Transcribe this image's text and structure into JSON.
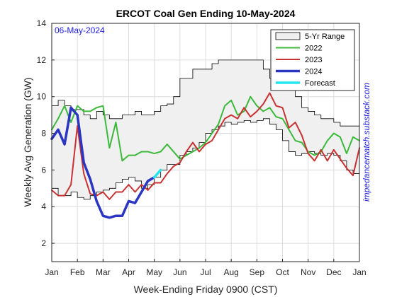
{
  "chart_data": {
    "type": "line",
    "title": "ERCOT Coal Gen Ending 10-May-2024",
    "xlabel": "Week-Ending Friday 0900 (CST)",
    "ylabel": "Weekly Avg Generation (GW)",
    "annotation": "06-May-2024",
    "side_label": "impedancematch.substack.com",
    "x_ticks": [
      "Jan",
      "Feb",
      "Mar",
      "Apr",
      "May",
      "Jun",
      "Jul",
      "Aug",
      "Sep",
      "Oct",
      "Nov",
      "Dec",
      "Jan"
    ],
    "x_range": [
      0,
      12
    ],
    "ylim": [
      1,
      14
    ],
    "y_ticks": [
      2,
      4,
      6,
      8,
      10,
      12,
      14
    ],
    "grid": true,
    "legend_position": "top-right",
    "range_band": {
      "name": "5-Yr Range",
      "color": "#f0f0f0",
      "x": [
        0.0,
        0.25,
        0.5,
        0.75,
        1.0,
        1.25,
        1.5,
        1.75,
        2.0,
        2.25,
        2.5,
        2.75,
        3.0,
        3.25,
        3.5,
        3.75,
        4.0,
        4.25,
        4.5,
        4.75,
        5.0,
        5.25,
        5.5,
        5.75,
        6.0,
        6.25,
        6.5,
        6.75,
        7.0,
        7.25,
        7.5,
        7.75,
        8.0,
        8.25,
        8.5,
        8.75,
        9.0,
        9.25,
        9.5,
        9.75,
        10.0,
        10.25,
        10.5,
        10.75,
        11.0,
        11.25,
        11.5,
        11.75,
        12.0
      ],
      "low": [
        5.0,
        4.6,
        4.6,
        4.8,
        4.5,
        4.4,
        4.6,
        4.8,
        4.9,
        5.0,
        5.3,
        5.5,
        5.6,
        5.4,
        5.0,
        5.2,
        5.6,
        6.0,
        6.3,
        6.3,
        6.8,
        7.0,
        7.2,
        7.5,
        8.0,
        8.2,
        8.4,
        8.6,
        8.5,
        8.6,
        8.7,
        8.6,
        8.7,
        8.8,
        8.5,
        8.2,
        7.6,
        7.0,
        6.8,
        6.9,
        7.0,
        6.9,
        6.8,
        6.9,
        6.8,
        6.5,
        6.0,
        5.8,
        5.8
      ],
      "high": [
        9.5,
        9.8,
        9.5,
        9.3,
        9.3,
        9.0,
        8.8,
        9.2,
        9.0,
        8.8,
        8.8,
        9.0,
        9.0,
        9.2,
        9.0,
        9.0,
        9.2,
        9.5,
        9.6,
        10.0,
        11.0,
        11.0,
        11.5,
        11.5,
        11.5,
        11.8,
        12.0,
        12.0,
        12.0,
        12.0,
        12.0,
        12.0,
        12.0,
        11.5,
        11.0,
        11.0,
        10.6,
        10.6,
        10.0,
        9.4,
        9.2,
        9.0,
        8.8,
        8.8,
        8.6,
        8.4,
        8.4,
        8.4,
        8.4
      ]
    },
    "series": [
      {
        "name": "2022",
        "color": "#3bb93b",
        "x": [
          0.0,
          0.25,
          0.5,
          0.75,
          1.0,
          1.25,
          1.5,
          1.75,
          2.0,
          2.25,
          2.5,
          2.75,
          3.0,
          3.25,
          3.5,
          3.75,
          4.0,
          4.25,
          4.5,
          4.75,
          5.0,
          5.25,
          5.5,
          5.75,
          6.0,
          6.25,
          6.5,
          6.75,
          7.0,
          7.25,
          7.5,
          7.75,
          8.0,
          8.25,
          8.5,
          8.75,
          9.0,
          9.25,
          9.5,
          9.75,
          10.0,
          10.25,
          10.5,
          10.75,
          11.0,
          11.25,
          11.5,
          11.75,
          12.0
        ],
        "y": [
          8.2,
          8.8,
          9.5,
          8.6,
          9.5,
          9.2,
          9.2,
          9.4,
          9.5,
          7.2,
          8.6,
          6.5,
          6.8,
          6.8,
          7.0,
          7.0,
          6.9,
          7.0,
          7.4,
          7.0,
          6.6,
          6.8,
          7.0,
          7.2,
          7.5,
          8.0,
          8.5,
          9.5,
          9.8,
          9.0,
          9.2,
          10.0,
          9.5,
          9.2,
          9.4,
          8.9,
          8.8,
          8.2,
          7.6,
          7.5,
          7.0,
          6.8,
          7.0,
          7.6,
          8.0,
          7.8,
          6.9,
          7.8,
          7.6
        ]
      },
      {
        "name": "2023",
        "color": "#c83232",
        "x": [
          0.0,
          0.25,
          0.5,
          0.75,
          1.0,
          1.25,
          1.5,
          1.75,
          2.0,
          2.25,
          2.5,
          2.75,
          3.0,
          3.25,
          3.5,
          3.75,
          4.0,
          4.25,
          4.5,
          4.75,
          5.0,
          5.25,
          5.5,
          5.75,
          6.0,
          6.25,
          6.5,
          6.75,
          7.0,
          7.25,
          7.5,
          7.75,
          8.0,
          8.25,
          8.5,
          8.75,
          9.0,
          9.25,
          9.5,
          9.75,
          10.0,
          10.25,
          10.5,
          10.75,
          11.0,
          11.25,
          11.5,
          11.75,
          12.0
        ],
        "y": [
          4.9,
          4.6,
          4.6,
          5.2,
          8.4,
          5.8,
          4.7,
          4.6,
          4.8,
          4.4,
          4.8,
          4.8,
          5.2,
          4.8,
          5.2,
          4.9,
          5.3,
          5.3,
          5.8,
          6.2,
          6.4,
          7.0,
          7.5,
          7.0,
          7.4,
          7.6,
          8.2,
          8.8,
          9.0,
          8.8,
          9.4,
          8.9,
          9.2,
          9.6,
          10.2,
          9.5,
          9.4,
          8.3,
          8.6,
          7.9,
          6.9,
          6.5,
          7.1,
          6.5,
          7.1,
          6.6,
          6.1,
          5.7,
          7.2
        ]
      },
      {
        "name": "2024",
        "color": "#2a35c2",
        "x": [
          0.0,
          0.25,
          0.5,
          0.75,
          1.0,
          1.25,
          1.5,
          1.75,
          2.0,
          2.25,
          2.5,
          2.75,
          3.0,
          3.25,
          3.5,
          3.75,
          4.0
        ],
        "y": [
          7.7,
          8.2,
          7.4,
          9.4,
          9.0,
          6.4,
          5.5,
          4.3,
          3.5,
          3.4,
          3.5,
          3.5,
          4.3,
          4.2,
          4.8,
          5.4,
          5.6
        ]
      },
      {
        "name": "Forecast",
        "color": "#22e6ee",
        "x": [
          4.0,
          4.25
        ],
        "y": [
          5.6,
          6.0
        ]
      }
    ]
  }
}
